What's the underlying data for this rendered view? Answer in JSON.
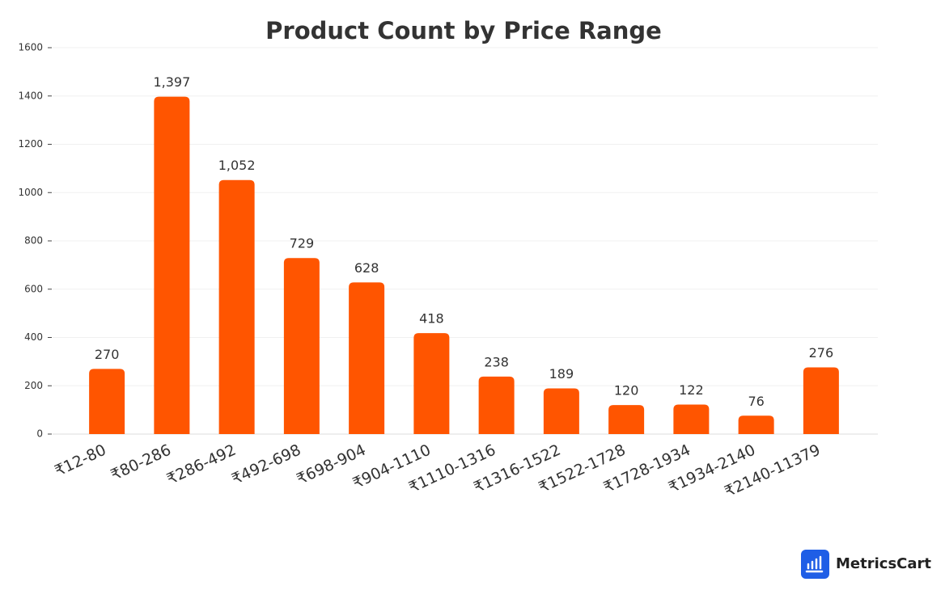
{
  "chart_data": {
    "type": "bar",
    "title": "Product Count by Price Range",
    "categories": [
      "₹12-80",
      "₹80-286",
      "₹286-492",
      "₹492-698",
      "₹698-904",
      "₹904-1110",
      "₹1110-1316",
      "₹1316-1522",
      "₹1522-1728",
      "₹1728-1934",
      "₹1934-2140",
      "₹2140-11379"
    ],
    "values": [
      270,
      1397,
      1052,
      729,
      628,
      418,
      238,
      189,
      120,
      122,
      76,
      276
    ],
    "value_labels": [
      "270",
      "1,397",
      "1,052",
      "729",
      "628",
      "418",
      "238",
      "189",
      "120",
      "122",
      "76",
      "276"
    ],
    "color": "#ff5500",
    "ylim": [
      0,
      1600
    ],
    "yticks": [
      0,
      200,
      400,
      600,
      800,
      1000,
      1200,
      1400,
      1600
    ],
    "grid": true
  },
  "brand": "MetricsCart"
}
